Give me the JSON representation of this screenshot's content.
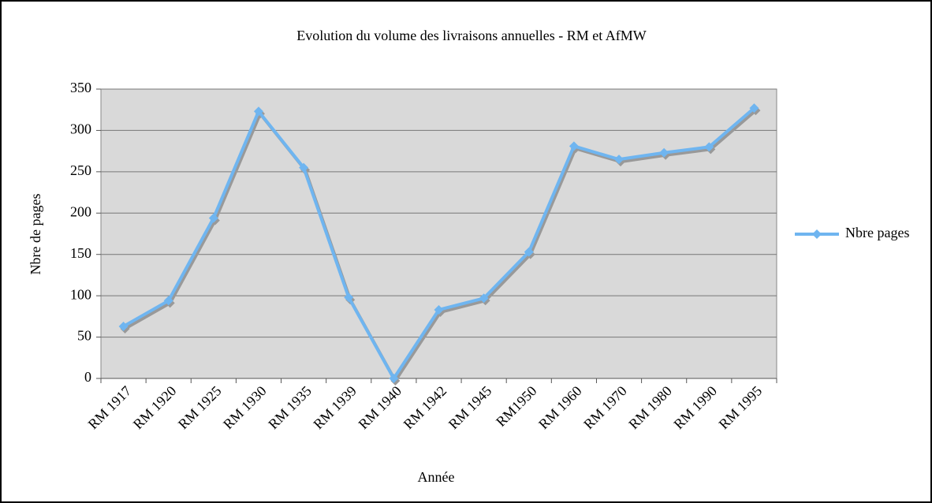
{
  "chart_data": {
    "type": "line",
    "title": "Evolution du volume des livraisons annuelles - RM et AfMW",
    "x_label": "Année",
    "y_label": "Nbre de pages",
    "categories": [
      "RM 1917",
      "RM 1920",
      "RM 1925",
      "RM 1930",
      "RM 1935",
      "RM 1939",
      "RM 1940",
      "RM 1942",
      "RM 1945",
      "RM1950",
      "RM 1960",
      "RM 1970",
      "RM 1980",
      "RM 1990",
      "RM 1995"
    ],
    "series": [
      {
        "name": "Nbre pages",
        "color": "#6fb5f0",
        "values": [
          63,
          94,
          194,
          323,
          255,
          98,
          0,
          83,
          97,
          153,
          281,
          265,
          273,
          280,
          327
        ]
      }
    ],
    "ylim": [
      0,
      350
    ],
    "yticks": [
      0,
      50,
      100,
      150,
      200,
      250,
      300,
      350
    ],
    "grid": true,
    "legend": "right"
  }
}
